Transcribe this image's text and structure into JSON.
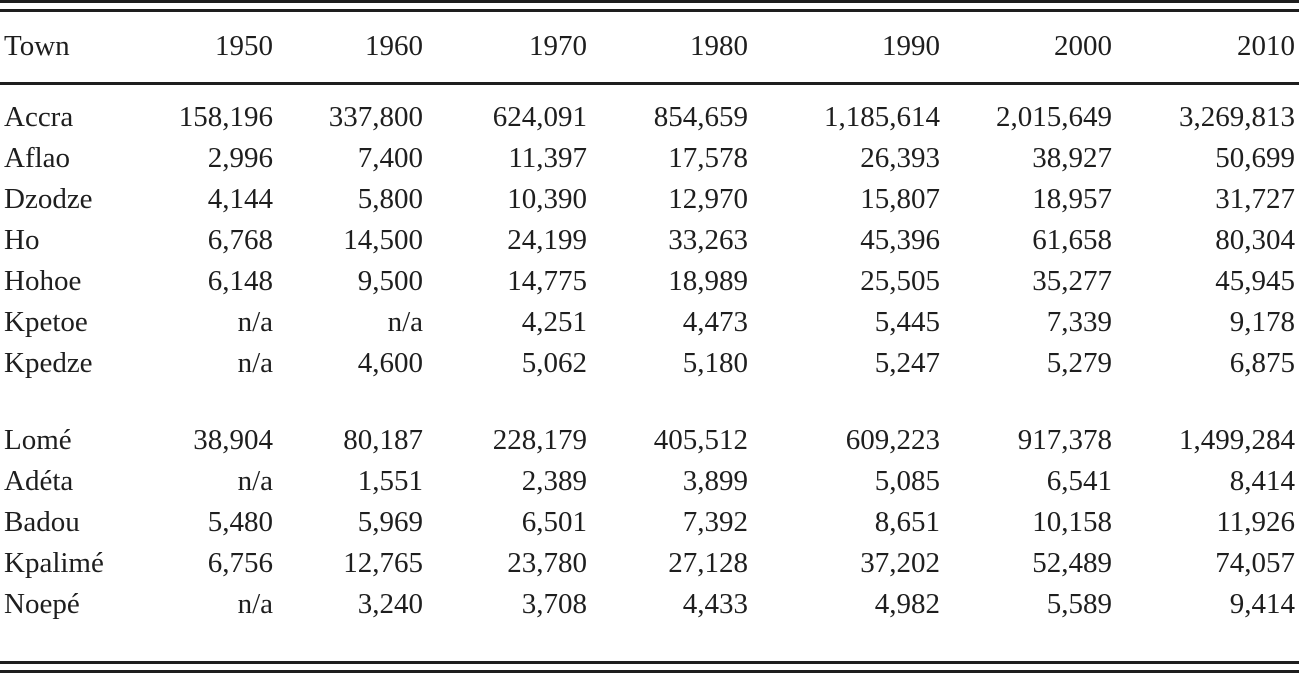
{
  "colors": {
    "ink": "#1e1e1e",
    "rule": "#1e1e1e",
    "background": "#ffffff"
  },
  "table": {
    "header": [
      "Town",
      "1950",
      "1960",
      "1970",
      "1980",
      "1990",
      "2000",
      "2010"
    ],
    "na_label": "n/a",
    "groups": [
      {
        "rows": [
          {
            "town": "Accra",
            "values": [
              "158,196",
              "337,800",
              "624,091",
              "854,659",
              "1,185,614",
              "2,015,649",
              "3,269,813"
            ]
          },
          {
            "town": "Aflao",
            "values": [
              "2,996",
              "7,400",
              "11,397",
              "17,578",
              "26,393",
              "38,927",
              "50,699"
            ]
          },
          {
            "town": "Dzodze",
            "values": [
              "4,144",
              "5,800",
              "10,390",
              "12,970",
              "15,807",
              "18,957",
              "31,727"
            ]
          },
          {
            "town": "Ho",
            "values": [
              "6,768",
              "14,500",
              "24,199",
              "33,263",
              "45,396",
              "61,658",
              "80,304"
            ]
          },
          {
            "town": "Hohoe",
            "values": [
              "6,148",
              "9,500",
              "14,775",
              "18,989",
              "25,505",
              "35,277",
              "45,945"
            ]
          },
          {
            "town": "Kpetoe",
            "values": [
              "n/a",
              "n/a",
              "4,251",
              "4,473",
              "5,445",
              "7,339",
              "9,178"
            ]
          },
          {
            "town": "Kpedze",
            "values": [
              "n/a",
              "4,600",
              "5,062",
              "5,180",
              "5,247",
              "5,279",
              "6,875"
            ]
          }
        ]
      },
      {
        "rows": [
          {
            "town": "Lomé",
            "values": [
              "38,904",
              "80,187",
              "228,179",
              "405,512",
              "609,223",
              "917,378",
              "1,499,284"
            ]
          },
          {
            "town": "Adéta",
            "values": [
              "n/a",
              "1,551",
              "2,389",
              "3,899",
              "5,085",
              "6,541",
              "8,414"
            ]
          },
          {
            "town": "Badou",
            "values": [
              "5,480",
              "5,969",
              "6,501",
              "7,392",
              "8,651",
              "10,158",
              "11,926"
            ]
          },
          {
            "town": "Kpalimé",
            "values": [
              "6,756",
              "12,765",
              "23,780",
              "27,128",
              "37,202",
              "52,489",
              "74,057"
            ]
          },
          {
            "town": "Noepé",
            "values": [
              "n/a",
              "3,240",
              "3,708",
              "4,433",
              "4,982",
              "5,589",
              "9,414"
            ]
          }
        ]
      }
    ]
  },
  "chart_data": {
    "type": "table",
    "columns": [
      "Town",
      "1950",
      "1960",
      "1970",
      "1980",
      "1990",
      "2000",
      "2010"
    ],
    "rows": [
      [
        "Accra",
        "158,196",
        "337,800",
        "624,091",
        "854,659",
        "1,185,614",
        "2,015,649",
        "3,269,813"
      ],
      [
        "Aflao",
        "2,996",
        "7,400",
        "11,397",
        "17,578",
        "26,393",
        "38,927",
        "50,699"
      ],
      [
        "Dzodze",
        "4,144",
        "5,800",
        "10,390",
        "12,970",
        "15,807",
        "18,957",
        "31,727"
      ],
      [
        "Ho",
        "6,768",
        "14,500",
        "24,199",
        "33,263",
        "45,396",
        "61,658",
        "80,304"
      ],
      [
        "Hohoe",
        "6,148",
        "9,500",
        "14,775",
        "18,989",
        "25,505",
        "35,277",
        "45,945"
      ],
      [
        "Kpetoe",
        "n/a",
        "n/a",
        "4,251",
        "4,473",
        "5,445",
        "7,339",
        "9,178"
      ],
      [
        "Kpedze",
        "n/a",
        "4,600",
        "5,062",
        "5,180",
        "5,247",
        "5,279",
        "6,875"
      ],
      [
        "Lomé",
        "38,904",
        "80,187",
        "228,179",
        "405,512",
        "609,223",
        "917,378",
        "1,499,284"
      ],
      [
        "Adéta",
        "n/a",
        "1,551",
        "2,389",
        "3,899",
        "5,085",
        "6,541",
        "8,414"
      ],
      [
        "Badou",
        "5,480",
        "5,969",
        "6,501",
        "7,392",
        "8,651",
        "10,158",
        "11,926"
      ],
      [
        "Kpalimé",
        "6,756",
        "12,765",
        "23,780",
        "27,128",
        "37,202",
        "52,489",
        "74,057"
      ],
      [
        "Noepé",
        "n/a",
        "3,240",
        "3,708",
        "4,433",
        "4,982",
        "5,589",
        "9,414"
      ]
    ]
  }
}
